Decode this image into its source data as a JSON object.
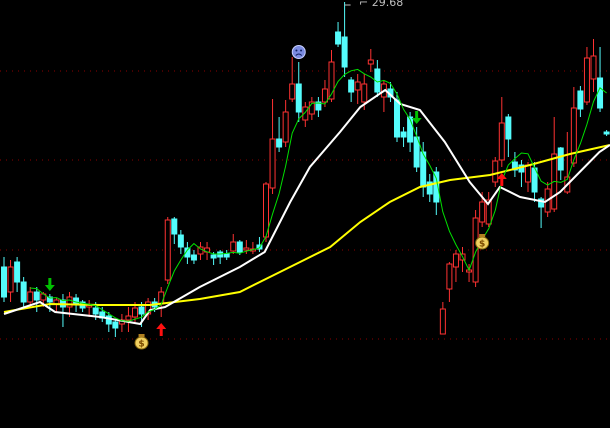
{
  "chart_data": {
    "type": "candlestick",
    "title": "",
    "grid": true,
    "colors": {
      "background": "#000000",
      "up": "#ff3232",
      "down": "#54fcfc",
      "grid": "#8b0000",
      "ma_short": "#00e000",
      "ma_mid": "#ffffff",
      "ma_long": "#ffff00",
      "label": "#c0c0c0"
    },
    "high_label": "29.68",
    "high_label_index": 52,
    "candles_ohlc": [
      [
        21.73,
        22.03,
        20.68,
        20.83
      ],
      [
        20.98,
        21.94,
        20.68,
        21.73
      ],
      [
        21.88,
        22.03,
        20.98,
        21.28
      ],
      [
        21.28,
        21.43,
        20.53,
        20.68
      ],
      [
        20.68,
        21.13,
        20.53,
        20.98
      ],
      [
        20.98,
        21.13,
        20.38,
        20.74
      ],
      [
        20.74,
        20.98,
        20.53,
        20.92
      ],
      [
        20.83,
        20.92,
        20.38,
        20.68
      ],
      [
        20.62,
        20.8,
        20.38,
        20.74
      ],
      [
        20.74,
        20.92,
        19.93,
        20.53
      ],
      [
        20.53,
        20.98,
        20.23,
        20.83
      ],
      [
        20.8,
        20.92,
        20.38,
        20.62
      ],
      [
        20.68,
        20.74,
        20.38,
        20.5
      ],
      [
        20.53,
        20.74,
        20.23,
        20.59
      ],
      [
        20.5,
        20.68,
        20.14,
        20.32
      ],
      [
        20.38,
        20.53,
        20.08,
        20.2
      ],
      [
        20.26,
        20.38,
        19.78,
        20.02
      ],
      [
        20.08,
        20.14,
        19.63,
        19.9
      ],
      [
        20.02,
        20.32,
        19.78,
        20.14
      ],
      [
        20.14,
        20.53,
        19.78,
        20.26
      ],
      [
        20.23,
        20.68,
        20.08,
        20.5
      ],
      [
        20.53,
        20.68,
        19.93,
        20.32
      ],
      [
        20.32,
        20.8,
        20.14,
        20.68
      ],
      [
        20.68,
        20.8,
        20.38,
        20.53
      ],
      [
        20.62,
        21.13,
        20.23,
        20.98
      ],
      [
        21.34,
        23.23,
        21.22,
        23.14
      ],
      [
        23.17,
        23.23,
        22.42,
        22.72
      ],
      [
        22.69,
        22.84,
        22.12,
        22.33
      ],
      [
        22.3,
        22.48,
        21.82,
        22.03
      ],
      [
        22.09,
        22.24,
        21.82,
        21.94
      ],
      [
        22.12,
        22.48,
        21.94,
        22.33
      ],
      [
        22.18,
        22.48,
        21.94,
        22.3
      ],
      [
        22.09,
        22.18,
        21.79,
        22.0
      ],
      [
        22.18,
        22.24,
        21.82,
        22.03
      ],
      [
        22.12,
        22.24,
        21.94,
        22.03
      ],
      [
        22.21,
        22.72,
        22.12,
        22.48
      ],
      [
        22.48,
        22.54,
        22.09,
        22.18
      ],
      [
        22.24,
        22.54,
        22.12,
        22.3
      ],
      [
        22.21,
        22.48,
        22.12,
        22.27
      ],
      [
        22.39,
        22.63,
        22.18,
        22.27
      ],
      [
        22.63,
        24.28,
        22.48,
        24.22
      ],
      [
        24.1,
        26.77,
        23.92,
        25.57
      ],
      [
        25.57,
        26.23,
        25.18,
        25.33
      ],
      [
        25.48,
        26.74,
        25.33,
        26.38
      ],
      [
        26.77,
        28.03,
        26.68,
        27.22
      ],
      [
        27.22,
        27.88,
        26.08,
        26.38
      ],
      [
        26.14,
        26.68,
        25.93,
        26.53
      ],
      [
        26.32,
        26.83,
        26.14,
        26.68
      ],
      [
        26.68,
        26.83,
        26.23,
        26.44
      ],
      [
        26.68,
        27.34,
        26.53,
        27.07
      ],
      [
        26.77,
        28.24,
        26.68,
        27.88
      ],
      [
        28.78,
        29.08,
        28.33,
        28.42
      ],
      [
        28.63,
        29.68,
        27.43,
        27.73
      ],
      [
        27.34,
        27.43,
        26.68,
        26.98
      ],
      [
        27.04,
        27.52,
        26.62,
        27.28
      ],
      [
        26.68,
        27.52,
        26.44,
        27.22
      ],
      [
        27.82,
        28.27,
        27.58,
        27.94
      ],
      [
        27.67,
        27.94,
        26.83,
        26.98
      ],
      [
        26.83,
        27.34,
        26.38,
        27.22
      ],
      [
        27.07,
        27.28,
        26.68,
        26.83
      ],
      [
        26.74,
        26.98,
        25.48,
        25.63
      ],
      [
        25.78,
        25.93,
        25.33,
        25.63
      ],
      [
        26.23,
        26.38,
        25.18,
        25.48
      ],
      [
        25.63,
        25.93,
        24.58,
        24.73
      ],
      [
        25.18,
        25.48,
        23.83,
        24.13
      ],
      [
        24.28,
        24.52,
        23.68,
        23.92
      ],
      [
        24.58,
        24.73,
        23.29,
        23.68
      ],
      [
        19.72,
        20.68,
        19.72,
        20.47
      ],
      [
        21.07,
        21.88,
        20.68,
        21.82
      ],
      [
        21.73,
        22.24,
        21.28,
        22.12
      ],
      [
        21.94,
        22.33,
        21.58,
        22.12
      ],
      [
        21.58,
        21.82,
        21.28,
        21.64
      ],
      [
        21.28,
        23.44,
        21.13,
        23.2
      ],
      [
        23.08,
        23.98,
        22.93,
        23.68
      ],
      [
        23.02,
        23.98,
        22.93,
        23.74
      ],
      [
        24.28,
        25.03,
        24.13,
        24.91
      ],
      [
        24.94,
        26.83,
        24.73,
        26.05
      ],
      [
        26.23,
        26.32,
        25.03,
        25.57
      ],
      [
        24.88,
        25.18,
        24.43,
        24.64
      ],
      [
        24.79,
        24.94,
        24.13,
        24.58
      ],
      [
        24.28,
        24.88,
        23.98,
        24.79
      ],
      [
        24.7,
        24.88,
        23.68,
        23.98
      ],
      [
        23.77,
        23.83,
        22.9,
        23.53
      ],
      [
        23.38,
        24.28,
        23.23,
        24.07
      ],
      [
        23.47,
        26.23,
        23.38,
        25.12
      ],
      [
        25.3,
        25.33,
        24.34,
        24.64
      ],
      [
        23.98,
        25.78,
        23.92,
        24.43
      ],
      [
        24.85,
        27.13,
        24.73,
        26.5
      ],
      [
        27.01,
        27.16,
        26.23,
        26.47
      ],
      [
        26.68,
        28.33,
        26.59,
        28.0
      ],
      [
        27.37,
        28.57,
        26.98,
        28.06
      ],
      [
        27.4,
        28.33,
        26.38,
        26.5
      ],
      [
        25.78,
        25.84,
        25.66,
        25.72
      ]
    ],
    "ma_short": {
      "period": 5,
      "color": "#00e000"
    },
    "ma_mid": {
      "color": "#ffffff",
      "points": [
        [
          0,
          20.32
        ],
        [
          5.5,
          20.68
        ],
        [
          7.8,
          20.38
        ],
        [
          14.7,
          20.23
        ],
        [
          20.8,
          20.02
        ],
        [
          22.3,
          20.44
        ],
        [
          24.6,
          20.53
        ],
        [
          29.9,
          21.13
        ],
        [
          36,
          21.73
        ],
        [
          39.8,
          22.18
        ],
        [
          43.7,
          23.68
        ],
        [
          46.7,
          24.73
        ],
        [
          51.3,
          25.78
        ],
        [
          54.4,
          26.53
        ],
        [
          58.2,
          27.04
        ],
        [
          60.5,
          26.62
        ],
        [
          63.5,
          26.44
        ],
        [
          67.3,
          25.48
        ],
        [
          71.1,
          24.28
        ],
        [
          73.9,
          23.62
        ],
        [
          75.7,
          24.13
        ],
        [
          78.8,
          23.83
        ],
        [
          82.6,
          23.68
        ],
        [
          84.9,
          23.98
        ],
        [
          87.9,
          24.58
        ],
        [
          90.9,
          25.18
        ],
        [
          92.5,
          25.39
        ]
      ]
    },
    "ma_long": {
      "color": "#ffff00",
      "points": [
        [
          0,
          20.38
        ],
        [
          7,
          20.62
        ],
        [
          14.7,
          20.59
        ],
        [
          22.3,
          20.59
        ],
        [
          29.9,
          20.77
        ],
        [
          36,
          20.98
        ],
        [
          40.6,
          21.43
        ],
        [
          45.2,
          21.88
        ],
        [
          49.8,
          22.33
        ],
        [
          54.4,
          23.08
        ],
        [
          58.9,
          23.68
        ],
        [
          63.5,
          24.13
        ],
        [
          68.1,
          24.34
        ],
        [
          74.2,
          24.49
        ],
        [
          80.3,
          24.79
        ],
        [
          86.4,
          25.12
        ],
        [
          92.5,
          25.39
        ]
      ]
    },
    "markers": [
      {
        "type": "sell-arrow",
        "icon": "green-down-arrow",
        "index": 7
      },
      {
        "type": "sell-arrow",
        "icon": "green-down-arrow",
        "index": 63
      },
      {
        "type": "buy-arrow",
        "icon": "red-up-arrow",
        "index": 24
      },
      {
        "type": "buy-arrow",
        "icon": "red-up-arrow",
        "index": 76
      },
      {
        "type": "money-bag",
        "icon": "money-bag",
        "index": 21
      },
      {
        "type": "money-bag",
        "icon": "money-bag",
        "index": 73
      },
      {
        "type": "sad-face",
        "icon": "sad-face",
        "index": 45
      },
      {
        "type": "sad-face",
        "icon": "sad-face",
        "index": 52
      }
    ]
  }
}
